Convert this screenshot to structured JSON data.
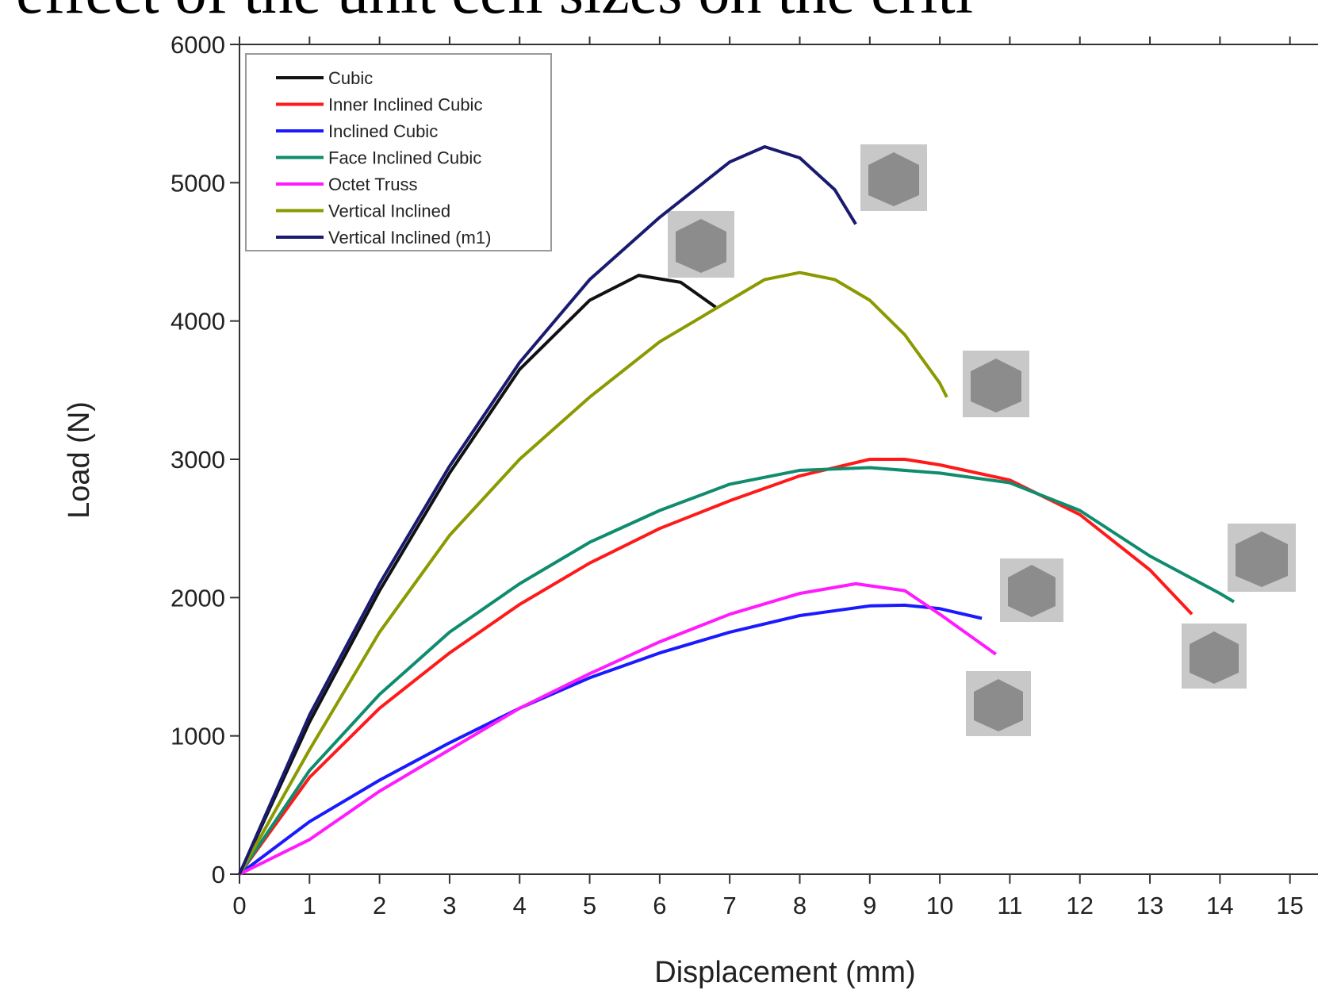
{
  "chart_data": {
    "type": "line",
    "title": "effect of the unit cell sizes on the criti",
    "x_label": "Displacement (mm)",
    "y_label": "Load (N)",
    "xlim": [
      0,
      15.4
    ],
    "ylim": [
      0,
      6000
    ],
    "xticks": [
      0,
      1,
      2,
      3,
      4,
      5,
      6,
      7,
      8,
      9,
      10,
      11,
      12,
      13,
      14,
      15
    ],
    "yticks": [
      0,
      1000,
      2000,
      3000,
      4000,
      5000,
      6000
    ],
    "legend": "upper left",
    "series": [
      {
        "name": "Cubic",
        "color": "#111111",
        "x": [
          0,
          1,
          2,
          3,
          4,
          5,
          5.7,
          6.3,
          6.8
        ],
        "values": [
          0,
          1100,
          2050,
          2900,
          3650,
          4150,
          4330,
          4280,
          4100
        ]
      },
      {
        "name": "Inner Inclined Cubic",
        "color": "#ff1a1a",
        "x": [
          0,
          1,
          2,
          3,
          4,
          5,
          6,
          7,
          8,
          9,
          9.5,
          10,
          11,
          12,
          13,
          13.6
        ],
        "values": [
          0,
          700,
          1200,
          1600,
          1950,
          2250,
          2500,
          2700,
          2880,
          3000,
          3000,
          2960,
          2850,
          2600,
          2200,
          1880
        ]
      },
      {
        "name": "Inclined Cubic",
        "color": "#1a1aff",
        "x": [
          0,
          1,
          2,
          3,
          4,
          5,
          6,
          7,
          8,
          9,
          9.5,
          10,
          10.6
        ],
        "values": [
          0,
          380,
          680,
          950,
          1200,
          1420,
          1600,
          1750,
          1870,
          1940,
          1945,
          1920,
          1850
        ]
      },
      {
        "name": "Face Inclined Cubic",
        "color": "#0f8c6e",
        "x": [
          0,
          1,
          2,
          3,
          4,
          5,
          6,
          7,
          8,
          9,
          10,
          11,
          12,
          13,
          14,
          14.2
        ],
        "values": [
          0,
          750,
          1300,
          1750,
          2100,
          2400,
          2630,
          2820,
          2920,
          2940,
          2900,
          2830,
          2630,
          2300,
          2030,
          1970
        ]
      },
      {
        "name": "Octet Truss",
        "color": "#ff1aff",
        "x": [
          0,
          1,
          2,
          3,
          4,
          5,
          6,
          7,
          8,
          8.8,
          9.5,
          10,
          10.8
        ],
        "values": [
          0,
          250,
          600,
          900,
          1200,
          1450,
          1680,
          1880,
          2030,
          2100,
          2050,
          1880,
          1590
        ]
      },
      {
        "name": "Vertical Inclined",
        "color": "#8a9a00",
        "x": [
          0,
          1,
          2,
          3,
          4,
          5,
          6,
          7,
          7.5,
          8,
          8.5,
          9,
          9.5,
          10,
          10.1
        ],
        "values": [
          0,
          900,
          1750,
          2450,
          3000,
          3450,
          3850,
          4150,
          4300,
          4350,
          4300,
          4150,
          3900,
          3550,
          3450
        ]
      },
      {
        "name": "Vertical Inclined (m1)",
        "color": "#1a1a70",
        "x": [
          0,
          1,
          2,
          3,
          4,
          5,
          6,
          7,
          7.5,
          8,
          8.5,
          8.8
        ],
        "values": [
          0,
          1150,
          2100,
          2950,
          3700,
          4300,
          4750,
          5150,
          5260,
          5180,
          4950,
          4700
        ]
      }
    ]
  }
}
